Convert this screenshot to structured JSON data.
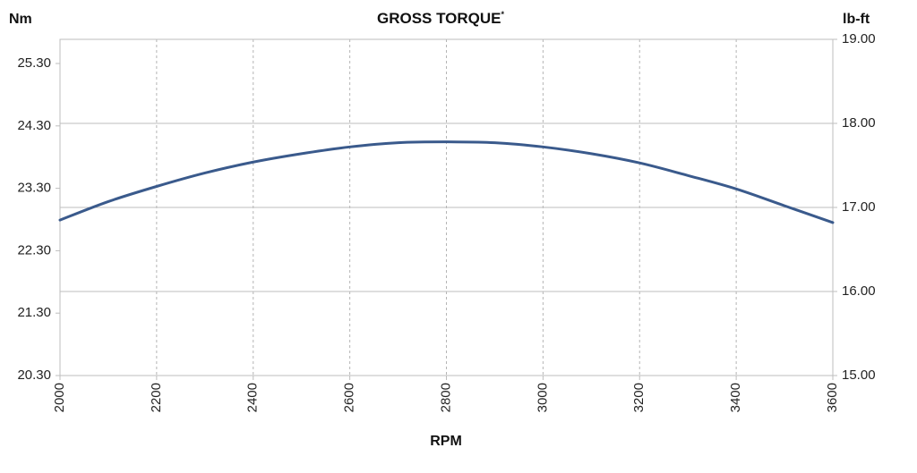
{
  "chart_data": {
    "type": "line",
    "title": "GROSS TORQUE",
    "title_superscript": "*",
    "xlabel": "RPM",
    "ylabel_left": "Nm",
    "ylabel_right": "lb-ft",
    "x_ticks": [
      "2000",
      "2200",
      "2400",
      "2600",
      "2800",
      "3000",
      "3200",
      "3400",
      "3600"
    ],
    "y_left_ticks": [
      "20.30",
      "21.30",
      "22.30",
      "23.30",
      "24.30",
      "25.30"
    ],
    "y_right_ticks": [
      "15.00",
      "16.00",
      "17.00",
      "18.00",
      "19.00"
    ],
    "xlim": [
      2000,
      3600
    ],
    "ylim_right": [
      15.0,
      19.0
    ],
    "grid_x": "dashed",
    "grid_y": "solid-right-axis",
    "series": [
      {
        "color": "#3a5a8c",
        "x": [
          2000,
          2100,
          2200,
          2300,
          2400,
          2500,
          2600,
          2700,
          2800,
          2900,
          3000,
          3100,
          3200,
          3300,
          3400,
          3500,
          3600
        ],
        "y_lbft": [
          16.85,
          17.07,
          17.25,
          17.41,
          17.54,
          17.64,
          17.72,
          17.77,
          17.78,
          17.77,
          17.72,
          17.64,
          17.53,
          17.38,
          17.22,
          17.02,
          16.82
        ]
      }
    ]
  }
}
